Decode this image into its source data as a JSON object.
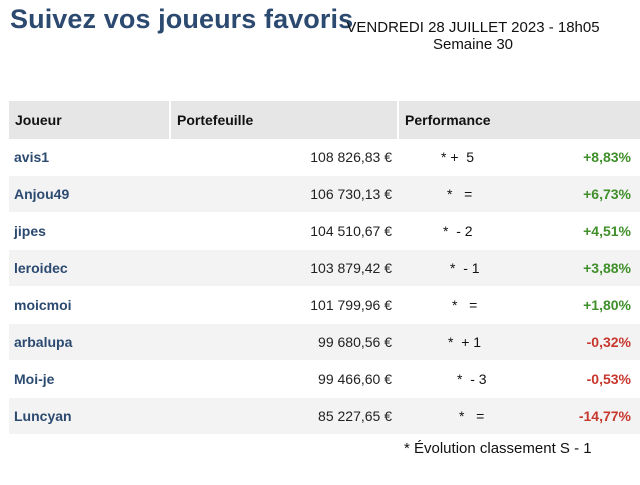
{
  "header": {
    "title": "Suivez vos joueurs favoris",
    "date": "VENDREDI 28 JUILLET 2023 - 18h05",
    "week": "Semaine 30"
  },
  "table": {
    "columns": [
      "Joueur",
      "Portefeuille",
      "Performance"
    ],
    "rows": [
      {
        "player": "avis1",
        "portfolio": "108 826,83 €",
        "evolution": "* +  5",
        "performance": "+8,83%"
      },
      {
        "player": "Anjou49",
        "portfolio": "106 730,13 €",
        "evolution": "*   =",
        "performance": "+6,73%"
      },
      {
        "player": "jipes",
        "portfolio": "104 510,67 €",
        "evolution": "*  - 2",
        "performance": "+4,51%"
      },
      {
        "player": "leroidec",
        "portfolio": "103 879,42 €",
        "evolution": "*  - 1",
        "performance": "+3,88%"
      },
      {
        "player": "moicmoi",
        "portfolio": "101 799,96 €",
        "evolution": "*   =",
        "performance": "+1,80%"
      },
      {
        "player": "arbalupa",
        "portfolio": "99 680,56 €",
        "evolution": "*  + 1",
        "performance": "-0,32%"
      },
      {
        "player": "Moi-je",
        "portfolio": "99 466,60 €",
        "evolution": "*  - 3",
        "performance": "-0,53%"
      },
      {
        "player": "Luncyan",
        "portfolio": "85 227,65 €",
        "evolution": "*   =",
        "performance": "-14,77%"
      }
    ]
  },
  "footnote": "* Évolution classement S - 1",
  "colors": {
    "title": "#2c4a70",
    "player_name": "#2c4a70",
    "positive": "#3f8f2a",
    "negative": "#c8372d",
    "header_bg": "#e6e6e6",
    "stripe_bg": "#f3f3f3"
  }
}
